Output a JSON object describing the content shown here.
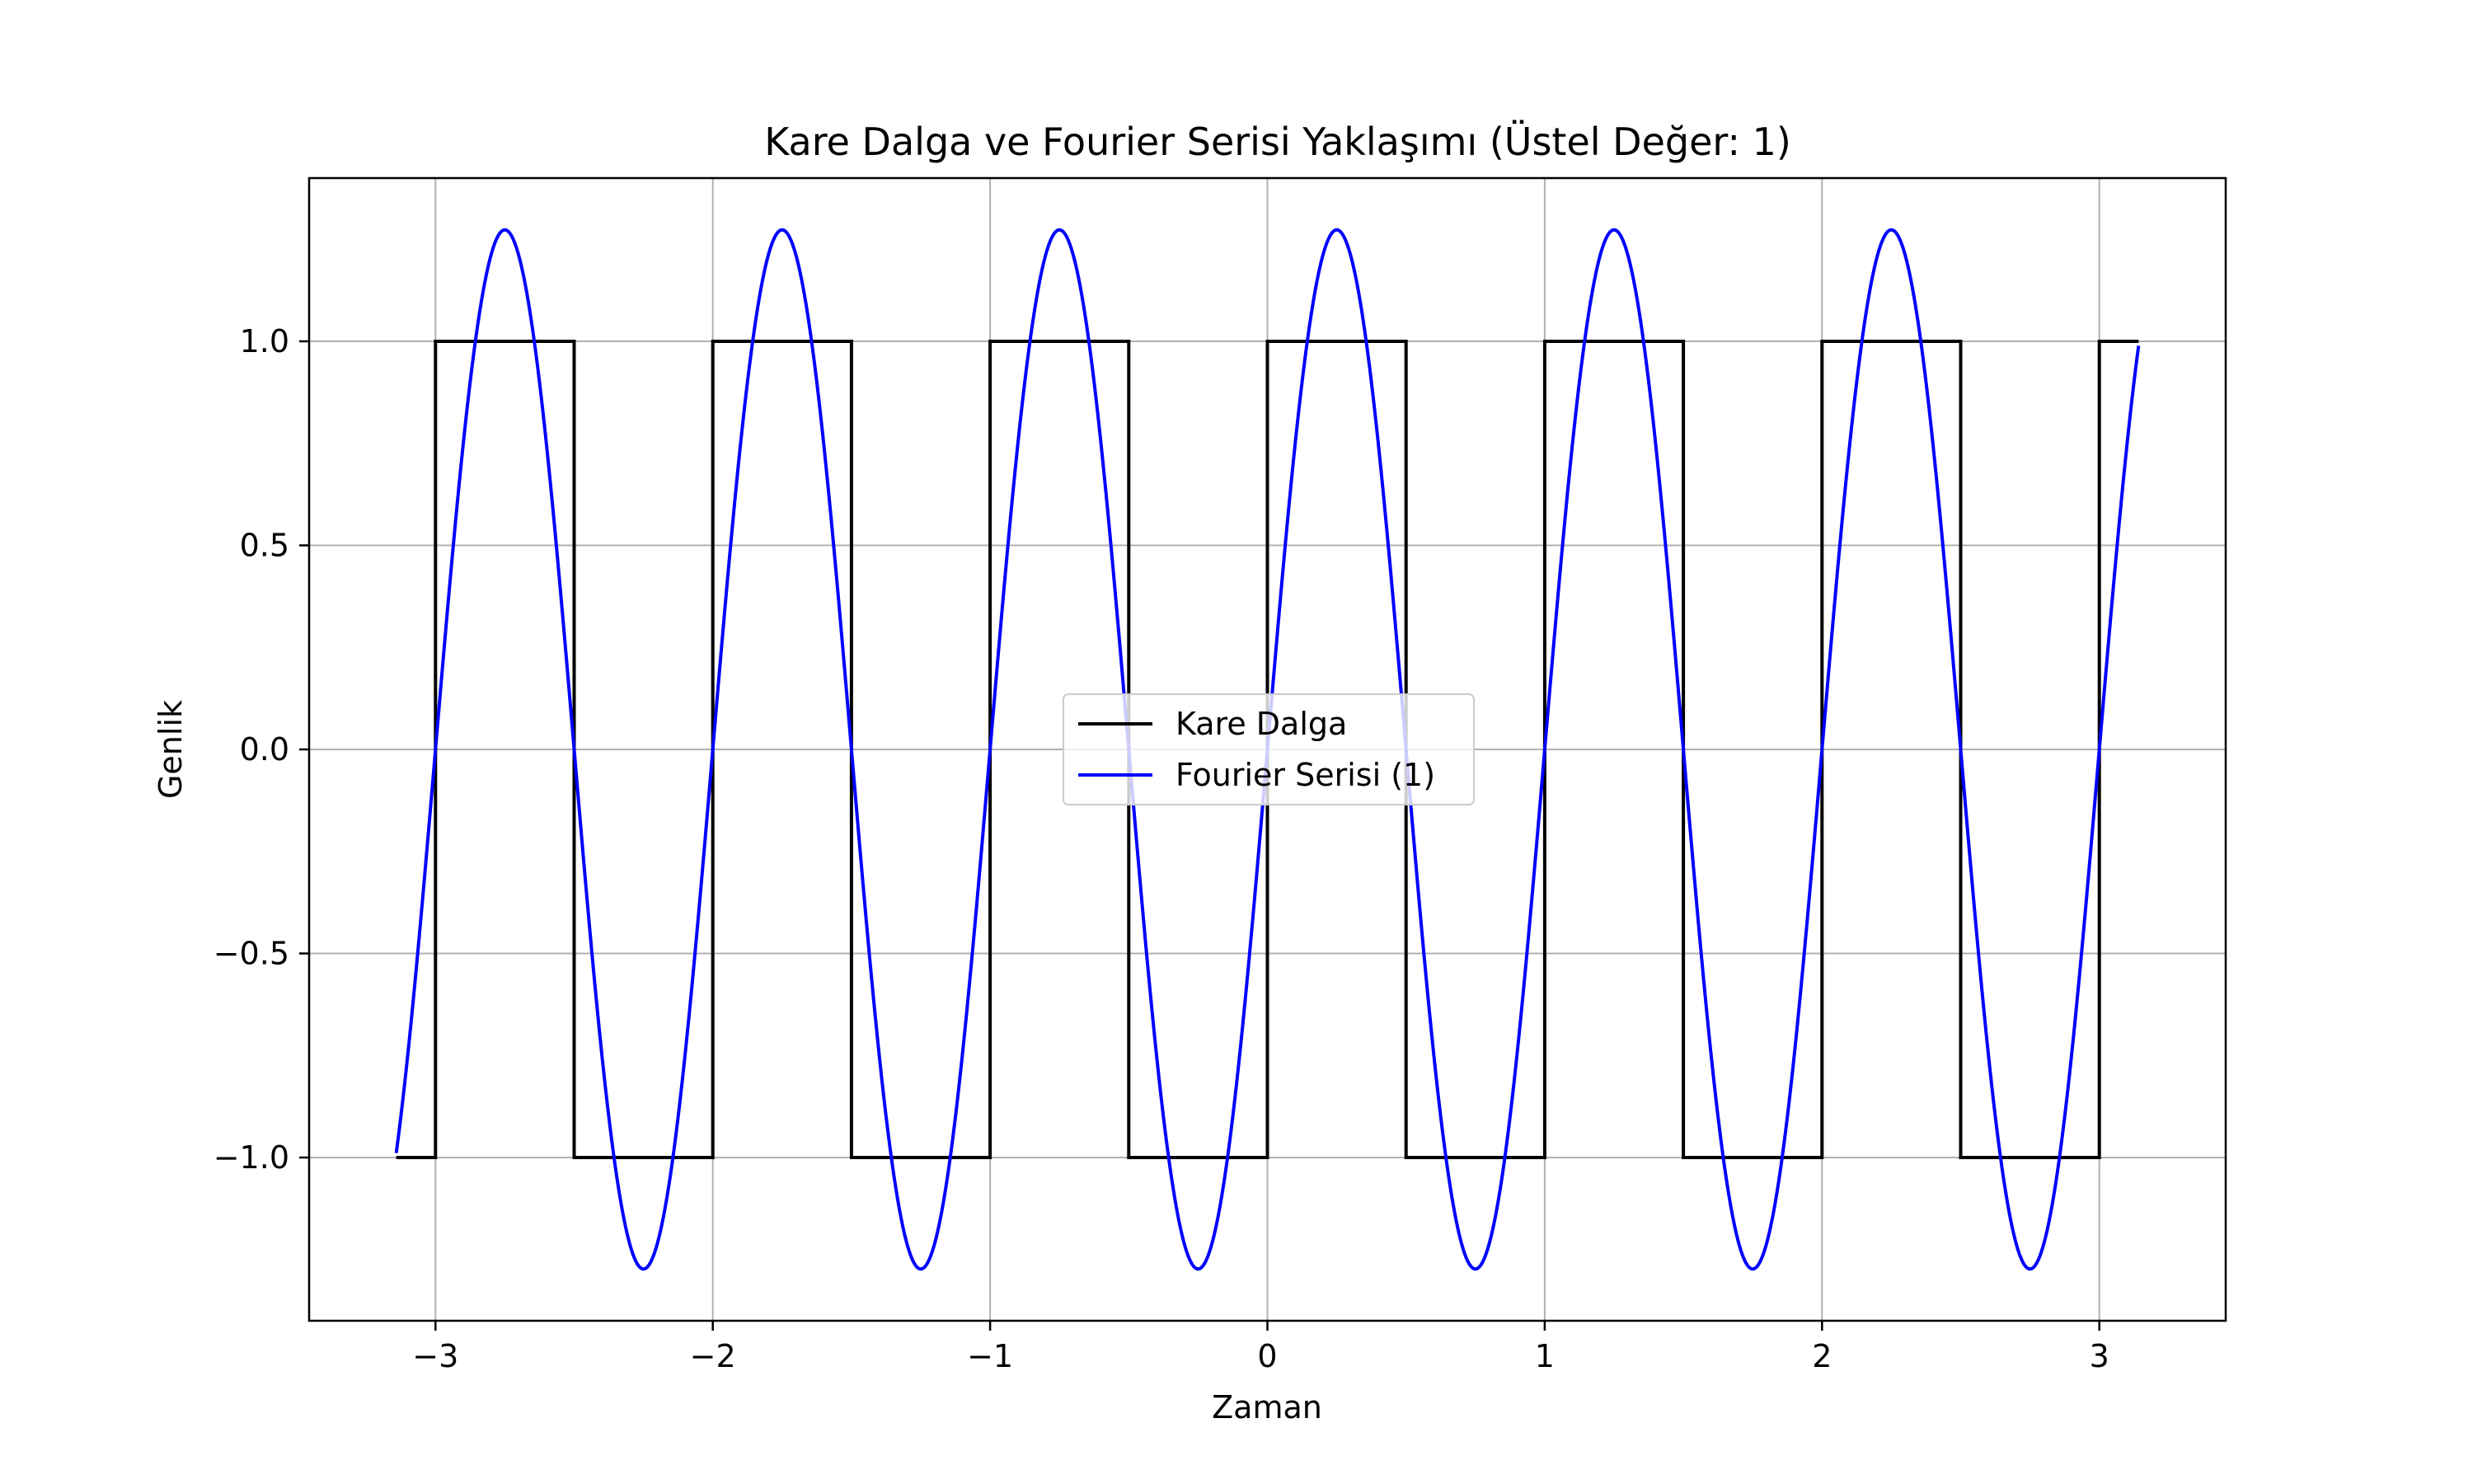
{
  "chart_data": {
    "type": "line",
    "title": "Kare Dalga ve Fourier Serisi Yaklaşımı (Üstel Değer: 1)",
    "xlabel": "Zaman",
    "ylabel": "Genlik",
    "xlim": [
      -3.4557,
      3.4557
    ],
    "ylim": [
      -1.4,
      1.4
    ],
    "grid": true,
    "legend_position": "center",
    "xticks": [
      -3,
      -2,
      -1,
      0,
      1,
      2,
      3
    ],
    "xtick_labels": [
      "−3",
      "−2",
      "−1",
      "0",
      "1",
      "2",
      "3"
    ],
    "yticks": [
      -1.0,
      -0.5,
      0.0,
      0.5,
      1.0
    ],
    "ytick_labels": [
      "−1.0",
      "−0.5",
      "0.0",
      "0.5",
      "1.0"
    ],
    "series": [
      {
        "name": "Kare Dalga",
        "color": "#000000",
        "x": [
          -3.1416,
          -3.0,
          -3.0,
          -2.5,
          -2.5,
          -2.0,
          -2.0,
          -1.5,
          -1.5,
          -1.0,
          -1.0,
          -0.5,
          -0.5,
          0.0,
          0.0,
          0.5,
          0.5,
          1.0,
          1.0,
          1.5,
          1.5,
          2.0,
          2.0,
          2.5,
          2.5,
          3.0,
          3.0,
          3.1416
        ],
        "y": [
          -1,
          -1,
          1,
          1,
          -1,
          -1,
          1,
          1,
          -1,
          -1,
          1,
          1,
          -1,
          -1,
          1,
          1,
          -1,
          -1,
          1,
          1,
          -1,
          -1,
          1,
          1,
          -1,
          -1,
          1,
          1
        ]
      },
      {
        "name": "Fourier Serisi (1)",
        "color": "#0000ff",
        "function": "sine",
        "amplitude": 1.2732,
        "frequency": 1,
        "x_start": -3.1416,
        "x_end": 3.1416
      }
    ]
  }
}
